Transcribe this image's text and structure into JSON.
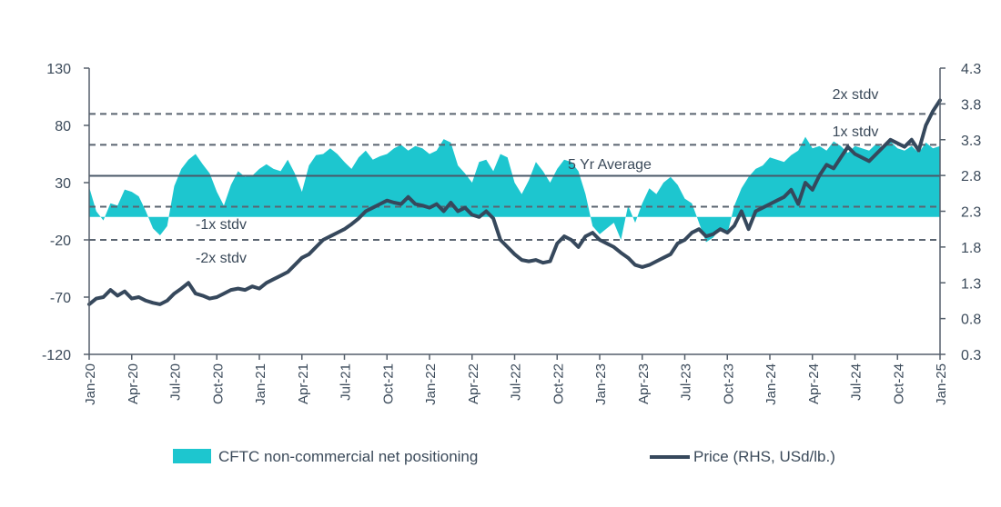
{
  "chart_data": {
    "type": "area+line",
    "colors": {
      "area": "#1dc6cf",
      "line": "#36485c",
      "avg": "#4a5868",
      "stdv": "#5a6470",
      "axis": "#555f6b"
    },
    "left_axis": {
      "ticks": [
        130,
        80,
        30,
        -20,
        -70,
        -120
      ],
      "ylim": [
        -120,
        130
      ]
    },
    "right_axis": {
      "ticks": [
        "4.3",
        "3.8",
        "3.3",
        "2.8",
        "2.3",
        "1.8",
        "1.3",
        "0.8",
        "0.3"
      ],
      "ylim": [
        0.3,
        4.3
      ]
    },
    "x_ticks": [
      "Jan-20",
      "Apr-20",
      "Jul-20",
      "Oct-20",
      "Jan-21",
      "Apr-21",
      "Jul-21",
      "Oct-21",
      "Jan-22",
      "Apr-22",
      "Jul-22",
      "Oct-22",
      "Jan-23",
      "Apr-23",
      "Jul-23",
      "Oct-23",
      "Jan-24",
      "Apr-24",
      "Jul-24",
      "Oct-24",
      "Jan-25"
    ],
    "reference_lines": [
      {
        "label": "2x stdv",
        "value": 90,
        "style": "dashed"
      },
      {
        "label": "1x stdv",
        "value": 63,
        "style": "dashed"
      },
      {
        "label": "5 Yr Average",
        "value": 36,
        "style": "solid"
      },
      {
        "label": "-1x stdv",
        "value": 9,
        "style": "dashed"
      },
      {
        "label": "-2x stdv",
        "value": -20,
        "style": "dashed"
      }
    ],
    "baseline": 0,
    "series": [
      {
        "name": "CFTC non-commercial net positioning",
        "axis": "left",
        "style": "area",
        "x": [
          0,
          0.5,
          1,
          1.5,
          2,
          2.5,
          3,
          3.5,
          4,
          4.5,
          5,
          5.5,
          6,
          6.5,
          7,
          7.5,
          8,
          8.5,
          9,
          9.5,
          10,
          10.5,
          11,
          11.5,
          12,
          12.5,
          13,
          13.5,
          14,
          14.5,
          15,
          15.5,
          16,
          16.5,
          17,
          17.5,
          18,
          18.5,
          19,
          19.5,
          20,
          20.5,
          21,
          21.5,
          22,
          22.5,
          23,
          23.5,
          24,
          24.5,
          25,
          25.5,
          26,
          26.5,
          27,
          27.5,
          28,
          28.5,
          29,
          29.5,
          30,
          30.5,
          31,
          31.5,
          32,
          32.5,
          33,
          33.5,
          34,
          34.5,
          35,
          35.5,
          36,
          36.5,
          37,
          37.5,
          38,
          38.5,
          39,
          39.5,
          40,
          40.5,
          41,
          41.5,
          42,
          42.5,
          43,
          43.5,
          44,
          44.5,
          45,
          45.5,
          46,
          46.5,
          47,
          47.5,
          48,
          48.5,
          49,
          49.5,
          50,
          50.5,
          51,
          51.5,
          52,
          52.5,
          53,
          53.5,
          54,
          54.5,
          55,
          55.5,
          56,
          56.5,
          57,
          57.5,
          58,
          58.5,
          59,
          59.5,
          60
        ],
        "values": [
          26,
          5,
          -3,
          12,
          10,
          24,
          22,
          18,
          5,
          -10,
          -16,
          -8,
          27,
          42,
          50,
          55,
          46,
          38,
          22,
          10,
          28,
          40,
          35,
          36,
          42,
          46,
          42,
          40,
          50,
          38,
          22,
          45,
          54,
          55,
          60,
          55,
          48,
          42,
          52,
          58,
          50,
          53,
          55,
          60,
          63,
          58,
          62,
          60,
          55,
          58,
          68,
          65,
          45,
          38,
          30,
          48,
          50,
          40,
          55,
          52,
          30,
          20,
          32,
          48,
          40,
          30,
          42,
          50,
          48,
          40,
          20,
          -8,
          -15,
          -10,
          -5,
          -20,
          10,
          -5,
          12,
          25,
          20,
          30,
          35,
          28,
          16,
          12,
          -5,
          -22,
          -18,
          -10,
          -15,
          10,
          25,
          35,
          42,
          45,
          52,
          50,
          48,
          54,
          58,
          70,
          60,
          62,
          58,
          66,
          62,
          56,
          62,
          60,
          58,
          64,
          60,
          66,
          60,
          58,
          62,
          56,
          65,
          60,
          62
        ]
      },
      {
        "name": "Price (RHS, USd/lb.)",
        "axis": "right",
        "style": "line",
        "x": [
          0,
          0.5,
          1,
          1.5,
          2,
          2.5,
          3,
          3.5,
          4,
          4.5,
          5,
          5.5,
          6,
          6.5,
          7,
          7.5,
          8,
          8.5,
          9,
          9.5,
          10,
          10.5,
          11,
          11.5,
          12,
          12.5,
          13,
          13.5,
          14,
          14.5,
          15,
          15.5,
          16,
          16.5,
          17,
          17.5,
          18,
          18.5,
          19,
          19.5,
          20,
          20.5,
          21,
          21.5,
          22,
          22.5,
          23,
          23.5,
          24,
          24.5,
          25,
          25.5,
          26,
          26.5,
          27,
          27.5,
          28,
          28.5,
          29,
          29.5,
          30,
          30.5,
          31,
          31.5,
          32,
          32.5,
          33,
          33.5,
          34,
          34.5,
          35,
          35.5,
          36,
          36.5,
          37,
          37.5,
          38,
          38.5,
          39,
          39.5,
          40,
          40.5,
          41,
          41.5,
          42,
          42.5,
          43,
          43.5,
          44,
          44.5,
          45,
          45.5,
          46,
          46.5,
          47,
          47.5,
          48,
          48.5,
          49,
          49.5,
          50,
          50.5,
          51,
          51.5,
          52,
          52.5,
          53,
          53.5,
          54,
          54.5,
          55,
          55.5,
          56,
          56.5,
          57,
          57.5,
          58,
          58.5,
          59,
          59.5,
          60
        ],
        "values": [
          1.0,
          1.08,
          1.1,
          1.2,
          1.12,
          1.18,
          1.08,
          1.1,
          1.05,
          1.02,
          1.0,
          1.05,
          1.15,
          1.22,
          1.3,
          1.15,
          1.12,
          1.08,
          1.1,
          1.15,
          1.2,
          1.22,
          1.2,
          1.25,
          1.22,
          1.3,
          1.35,
          1.4,
          1.45,
          1.55,
          1.65,
          1.7,
          1.8,
          1.9,
          1.95,
          2.0,
          2.05,
          2.12,
          2.2,
          2.3,
          2.35,
          2.4,
          2.45,
          2.42,
          2.4,
          2.5,
          2.4,
          2.38,
          2.35,
          2.4,
          2.3,
          2.42,
          2.3,
          2.35,
          2.25,
          2.22,
          2.3,
          2.2,
          1.9,
          1.8,
          1.7,
          1.62,
          1.6,
          1.62,
          1.58,
          1.6,
          1.85,
          1.95,
          1.9,
          1.8,
          1.95,
          2.0,
          1.9,
          1.85,
          1.8,
          1.72,
          1.65,
          1.55,
          1.52,
          1.55,
          1.6,
          1.65,
          1.7,
          1.85,
          1.9,
          2.0,
          2.05,
          1.95,
          1.98,
          2.05,
          2.0,
          2.1,
          2.3,
          2.05,
          2.3,
          2.35,
          2.4,
          2.45,
          2.5,
          2.6,
          2.4,
          2.7,
          2.6,
          2.8,
          2.95,
          2.9,
          3.05,
          3.2,
          3.1,
          3.05,
          3.0,
          3.1,
          3.2,
          3.3,
          3.25,
          3.2,
          3.3,
          3.15,
          3.5,
          3.7,
          3.85
        ]
      }
    ],
    "legend": [
      {
        "label": "CFTC non-commercial net positioning",
        "kind": "area"
      },
      {
        "label": "Price (RHS, USd/lb.)",
        "kind": "line"
      }
    ]
  }
}
